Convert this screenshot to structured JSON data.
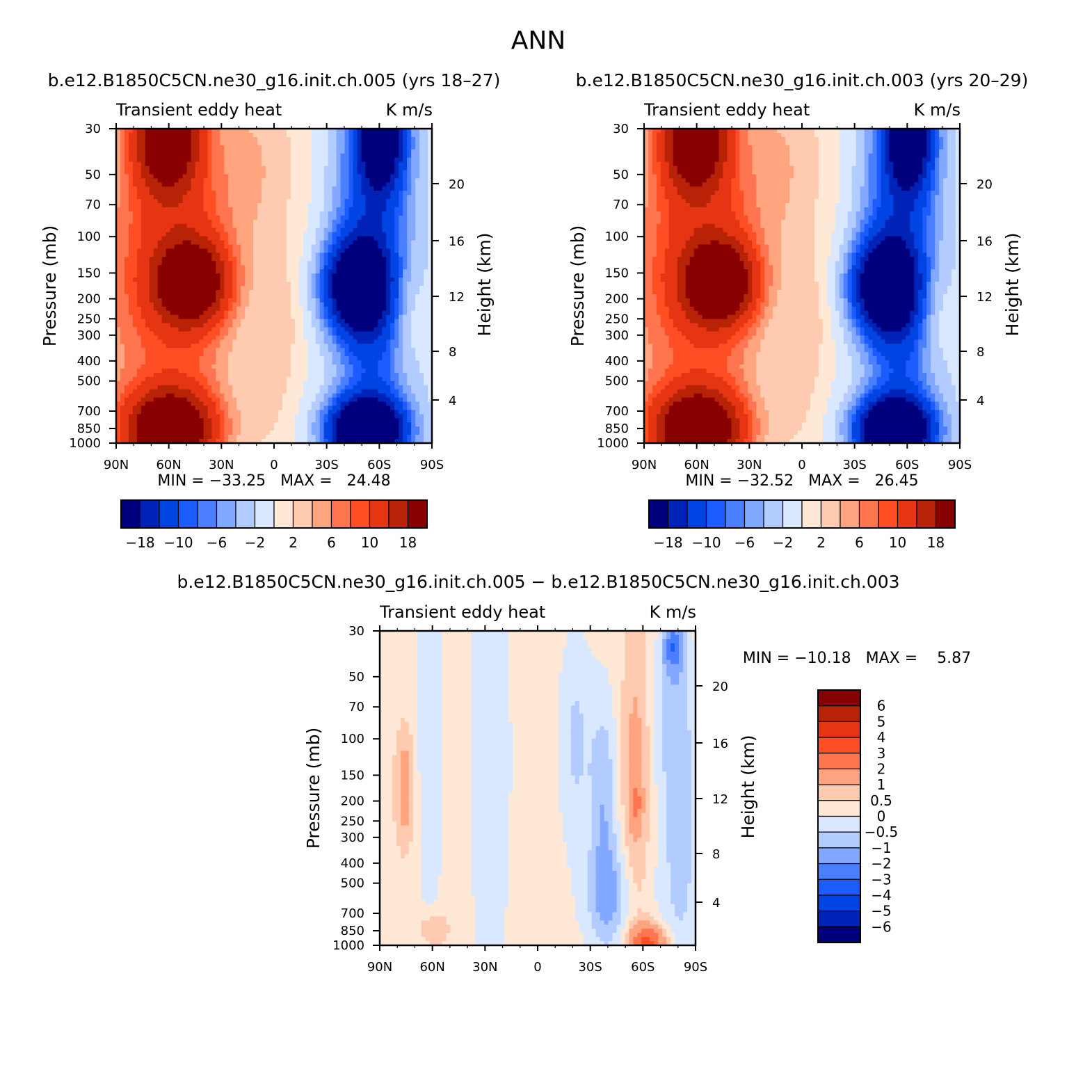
{
  "page_title": "ANN",
  "panels": [
    {
      "id": "p1",
      "title": "b.e12.B1850C5CN.ne30_g16.init.ch.005 (yrs 18–27)",
      "left_label": "Transient eddy heat",
      "right_label": "K m/s",
      "stats": "MIN = −33.25   MAX =   24.48"
    },
    {
      "id": "p2",
      "title": "b.e12.B1850C5CN.ne30_g16.init.ch.003 (yrs 20–29)",
      "left_label": "Transient eddy heat",
      "right_label": "K m/s",
      "stats": "MIN = −32.52   MAX =   26.45"
    },
    {
      "id": "p3",
      "title": "b.e12.B1850C5CN.ne30_g16.init.ch.005 − b.e12.B1850C5CN.ne30_g16.init.ch.003",
      "left_label": "Transient eddy heat",
      "right_label": "K m/s",
      "stats": "MIN = −10.18   MAX =    5.87"
    }
  ],
  "chart_data": [
    {
      "type": "heatmap",
      "title": "b.e12.B1850C5CN.ne30_g16.init.ch.005 (yrs 18–27)",
      "subtitle_left": "Transient eddy heat",
      "subtitle_right": "K m/s",
      "xlabel": "",
      "ylabel": "Pressure (mb)",
      "y2label": "Height (km)",
      "x_ticks": [
        "90N",
        "60N",
        "30N",
        "0",
        "30S",
        "60S",
        "90S"
      ],
      "y_ticks": [
        30,
        50,
        70,
        100,
        150,
        200,
        250,
        300,
        400,
        500,
        700,
        850,
        1000
      ],
      "y2_ticks": [
        20,
        16,
        12,
        8,
        4
      ],
      "y_scale": "log",
      "ylim": [
        1000,
        30
      ],
      "xlim": [
        90,
        -90
      ],
      "colorbar_ticks": [
        "−18",
        "−10",
        "−6",
        "−2",
        "2",
        "6",
        "10",
        "18"
      ],
      "colorbar_orientation": "horizontal",
      "min": -33.25,
      "max": 24.48
    },
    {
      "type": "heatmap",
      "title": "b.e12.B1850C5CN.ne30_g16.init.ch.003 (yrs 20–29)",
      "subtitle_left": "Transient eddy heat",
      "subtitle_right": "K m/s",
      "xlabel": "",
      "ylabel": "Pressure (mb)",
      "y2label": "Height (km)",
      "x_ticks": [
        "90N",
        "60N",
        "30N",
        "0",
        "30S",
        "60S",
        "90S"
      ],
      "y_ticks": [
        30,
        50,
        70,
        100,
        150,
        200,
        250,
        300,
        400,
        500,
        700,
        850,
        1000
      ],
      "y2_ticks": [
        20,
        16,
        12,
        8,
        4
      ],
      "y_scale": "log",
      "ylim": [
        1000,
        30
      ],
      "xlim": [
        90,
        -90
      ],
      "colorbar_ticks": [
        "−18",
        "−10",
        "−6",
        "−2",
        "2",
        "6",
        "10",
        "18"
      ],
      "colorbar_orientation": "horizontal",
      "min": -32.52,
      "max": 26.45
    },
    {
      "type": "heatmap",
      "title": "b.e12.B1850C5CN.ne30_g16.init.ch.005 − b.e12.B1850C5CN.ne30_g16.init.ch.003",
      "subtitle_left": "Transient eddy heat",
      "subtitle_right": "K m/s",
      "xlabel": "",
      "ylabel": "Pressure (mb)",
      "y2label": "Height (km)",
      "x_ticks": [
        "90N",
        "60N",
        "30N",
        "0",
        "30S",
        "60S",
        "90S"
      ],
      "y_ticks": [
        30,
        50,
        70,
        100,
        150,
        200,
        250,
        300,
        400,
        500,
        700,
        850,
        1000
      ],
      "y2_ticks": [
        20,
        16,
        12,
        8,
        4
      ],
      "y_scale": "log",
      "ylim": [
        1000,
        30
      ],
      "xlim": [
        90,
        -90
      ],
      "colorbar_ticks": [
        "6",
        "5",
        "4",
        "3",
        "2",
        "1",
        "0.5",
        "0",
        "−0.5",
        "−1",
        "−2",
        "−3",
        "−4",
        "−5",
        "−6"
      ],
      "colorbar_orientation": "vertical",
      "min": -10.18,
      "max": 5.87
    }
  ],
  "colors": {
    "scale16": [
      "#00007f",
      "#0023b7",
      "#0045e3",
      "#1c5cff",
      "#4a80ff",
      "#82a8ff",
      "#b3ccff",
      "#d9e8ff",
      "#ffe9d6",
      "#ffcbb0",
      "#ffa47f",
      "#ff7550",
      "#ff4e23",
      "#e63512",
      "#b82207",
      "#880000"
    ],
    "diff_scale": [
      "#00007f",
      "#0023b7",
      "#0045e3",
      "#1c5cff",
      "#4a80ff",
      "#82a8ff",
      "#b3ccff",
      "#d9e8ff",
      "#ffe9d6",
      "#ffcbb0",
      "#ffa47f",
      "#ff7550",
      "#ff4e23",
      "#e63512",
      "#b82207",
      "#880000"
    ]
  }
}
